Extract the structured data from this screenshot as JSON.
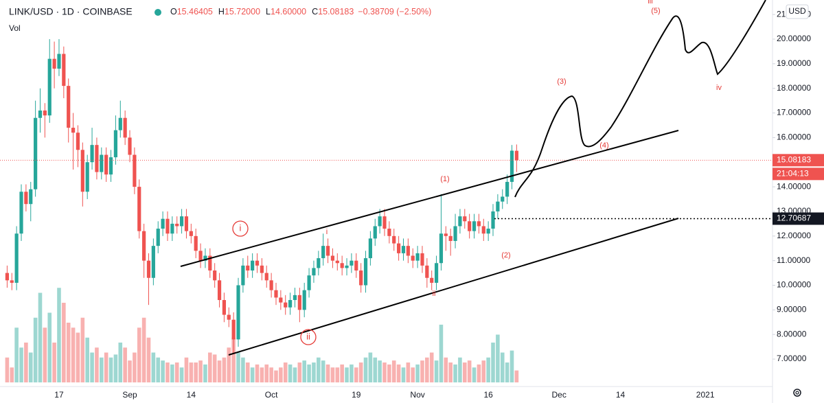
{
  "chart_data": {
    "type": "candlestick",
    "title": "LINK/USD · 1D · COINBASE",
    "legend": [
      {
        "key": "O",
        "value": "15.46405"
      },
      {
        "key": "H",
        "value": "15.72000"
      },
      {
        "key": "L",
        "value": "14.60000"
      },
      {
        "key": "C",
        "value": "15.08183"
      }
    ],
    "change": "−0.38709 (−2.50%)",
    "volume_label": "Vol",
    "currency": "USD",
    "countdown": "21:04:13",
    "up_color": "#26a69a",
    "down_color": "#ef5350",
    "grid": false,
    "ylim": [
      5.83,
      21.59
    ],
    "yticks": [
      {
        "value": 7,
        "label": "7.00000"
      },
      {
        "value": 8,
        "label": "8.00000"
      },
      {
        "value": 9,
        "label": "9.00000"
      },
      {
        "value": 10,
        "label": "10.00000"
      },
      {
        "value": 11,
        "label": "11.00000"
      },
      {
        "value": 12,
        "label": "12.00000"
      },
      {
        "value": 13,
        "label": "13.00000"
      },
      {
        "value": 14,
        "label": "14.00000"
      },
      {
        "value": 15,
        "label": "15.00000"
      },
      {
        "value": 16,
        "label": "16.00000"
      },
      {
        "value": 17,
        "label": "17.00000"
      },
      {
        "value": 18,
        "label": "18.00000"
      },
      {
        "value": 19,
        "label": "19.00000"
      },
      {
        "value": 20,
        "label": "20.00000"
      },
      {
        "value": 21,
        "label": "21.00000"
      }
    ],
    "hline": {
      "value": 12.70687
    },
    "categories": [
      null,
      null,
      null,
      null,
      null,
      null,
      null,
      null,
      null,
      null,
      null,
      "17",
      null,
      null,
      null,
      null,
      null,
      null,
      null,
      null,
      null,
      null,
      null,
      null,
      null,
      null,
      "Sep",
      null,
      null,
      null,
      null,
      null,
      null,
      null,
      null,
      null,
      null,
      null,
      null,
      "14",
      null,
      null,
      null,
      null,
      null,
      null,
      null,
      null,
      null,
      null,
      null,
      null,
      null,
      null,
      null,
      null,
      "Oct",
      null,
      null,
      null,
      null,
      null,
      null,
      null,
      null,
      null,
      null,
      null,
      null,
      null,
      null,
      null,
      null,
      null,
      "19",
      null,
      null,
      null,
      null,
      null,
      null,
      null,
      null,
      null,
      null,
      null,
      null,
      "Nov",
      null,
      null,
      null,
      null,
      null,
      null,
      null,
      null,
      null,
      null,
      null,
      null,
      null,
      null,
      "16",
      null,
      null,
      null,
      null,
      null,
      null,
      null,
      null,
      null,
      null,
      null,
      null,
      null,
      null,
      "Dec",
      null,
      null,
      null,
      null,
      null,
      null,
      null,
      null,
      null,
      null,
      null,
      null,
      "14",
      null,
      null,
      null,
      null,
      null,
      null,
      null,
      null,
      null,
      null,
      null,
      null,
      null,
      null,
      null,
      null,
      null,
      "2021"
    ],
    "open": [
      10.5,
      10.2,
      10.1,
      12.1,
      13.8,
      13.3,
      13.9,
      16.8,
      17.1,
      16.9,
      19.2,
      18.8,
      19.4,
      18.1,
      16.4,
      16.2,
      15.5,
      13.8,
      15.0,
      15.7,
      14.6,
      15.3,
      14.5,
      15.2,
      16.3,
      16.8,
      16.0,
      15.3,
      14.0,
      12.2,
      11.0,
      10.3,
      11.6,
      12.3,
      12.7,
      12.1,
      12.5,
      12.4,
      12.8,
      12.2,
      12.0,
      11.4,
      11.0,
      11.2,
      10.6,
      10.2,
      9.4,
      8.8,
      8.6,
      7.8,
      10.0,
      10.8,
      10.6,
      11.0,
      10.8,
      10.5,
      10.2,
      9.8,
      9.5,
      9.3,
      9.1,
      9.4,
      9.6,
      9.0,
      9.8,
      10.4,
      10.7,
      11.1,
      11.6,
      11.2,
      11.0,
      10.9,
      10.7,
      10.8,
      11.0,
      10.6,
      10.0,
      11.1,
      11.9,
      12.4,
      12.8,
      12.3,
      12.0,
      11.7,
      11.3,
      11.6,
      11.2,
      11.0,
      11.3,
      10.8,
      10.3,
      10.1,
      10.9,
      12.1,
      12.0,
      11.8,
      12.4,
      12.8,
      12.6,
      12.2,
      12.6,
      12.4,
      12.1,
      12.3,
      13.0,
      13.4,
      13.6,
      14.2,
      15.46405,
      null,
      null,
      null,
      null,
      null,
      null,
      null,
      null,
      null,
      null,
      null,
      null,
      null,
      null,
      null,
      null,
      null,
      null,
      null,
      null,
      null,
      null,
      null,
      null,
      null,
      null,
      null,
      null,
      null,
      null,
      null,
      null,
      null,
      null,
      null,
      null,
      null,
      null,
      null,
      null
    ],
    "high": [
      10.8,
      10.5,
      12.4,
      14.1,
      14.1,
      14.2,
      17.5,
      18.0,
      17.4,
      20.0,
      19.9,
      20.0,
      19.7,
      18.4,
      17.0,
      16.5,
      15.8,
      15.3,
      16.4,
      16.0,
      15.6,
      15.6,
      15.5,
      16.9,
      17.5,
      17.1,
      16.3,
      15.6,
      14.3,
      12.5,
      11.3,
      11.9,
      12.6,
      13.0,
      13.0,
      12.8,
      12.8,
      13.1,
      13.1,
      12.5,
      12.3,
      11.7,
      11.5,
      11.5,
      10.9,
      10.5,
      9.7,
      9.1,
      8.9,
      10.3,
      11.1,
      11.2,
      11.3,
      11.3,
      11.1,
      10.8,
      10.5,
      10.1,
      9.8,
      9.6,
      9.7,
      9.9,
      9.9,
      10.1,
      10.7,
      11.0,
      11.4,
      12.1,
      11.9,
      11.5,
      11.3,
      11.2,
      11.1,
      11.3,
      11.3,
      10.9,
      11.4,
      12.2,
      12.7,
      13.1,
      13.1,
      12.6,
      12.3,
      12.0,
      11.9,
      11.9,
      11.5,
      11.6,
      11.6,
      11.1,
      10.6,
      11.2,
      13.7,
      12.4,
      12.3,
      12.9,
      13.1,
      13.1,
      12.9,
      12.9,
      12.9,
      12.7,
      12.6,
      13.3,
      13.7,
      13.9,
      14.5,
      15.7,
      15.72,
      null,
      null,
      null,
      null,
      null,
      null,
      null,
      null,
      null,
      null,
      null,
      null,
      null,
      null,
      null,
      null,
      null,
      null,
      null,
      null,
      null,
      null,
      null,
      null,
      null,
      null,
      null,
      null,
      null,
      null,
      null,
      null,
      null,
      null,
      null,
      null,
      null,
      null,
      null,
      null
    ],
    "low": [
      9.9,
      9.8,
      9.8,
      11.8,
      13.0,
      12.6,
      13.6,
      16.2,
      16.0,
      16.6,
      18.0,
      18.5,
      17.6,
      15.8,
      14.7,
      14.8,
      13.2,
      13.5,
      14.7,
      14.3,
      14.3,
      14.2,
      14.2,
      14.9,
      16.0,
      15.7,
      15.0,
      13.7,
      11.9,
      10.3,
      9.2,
      10.0,
      11.3,
      12.0,
      11.8,
      11.8,
      12.1,
      12.1,
      11.9,
      11.7,
      11.1,
      10.7,
      10.7,
      10.3,
      9.9,
      9.1,
      8.5,
      8.3,
      7.2,
      7.5,
      9.7,
      10.3,
      10.3,
      10.5,
      10.2,
      9.9,
      9.5,
      9.2,
      9.0,
      8.8,
      8.8,
      9.1,
      8.5,
      8.7,
      9.5,
      10.1,
      10.4,
      10.8,
      10.9,
      10.7,
      10.6,
      10.4,
      10.4,
      10.5,
      10.3,
      9.7,
      9.7,
      10.8,
      11.6,
      12.1,
      12.0,
      11.7,
      11.4,
      11.0,
      11.0,
      10.9,
      10.7,
      10.7,
      10.5,
      9.9,
      9.8,
      9.8,
      10.6,
      11.4,
      11.2,
      11.5,
      12.1,
      12.3,
      11.9,
      11.9,
      12.1,
      11.8,
      11.8,
      12.0,
      12.7,
      13.1,
      13.3,
      13.9,
      14.6,
      null,
      null,
      null,
      null,
      null,
      null,
      null,
      null,
      null,
      null,
      null,
      null,
      null,
      null,
      null,
      null,
      null,
      null,
      null,
      null,
      null,
      null,
      null,
      null,
      null,
      null,
      null,
      null,
      null,
      null,
      null,
      null,
      null,
      null,
      null,
      null,
      null,
      null,
      null,
      null
    ],
    "close": [
      10.2,
      10.1,
      12.1,
      13.8,
      13.3,
      13.9,
      16.8,
      17.1,
      16.9,
      19.2,
      18.8,
      19.4,
      18.1,
      16.4,
      16.2,
      15.5,
      13.8,
      15.0,
      15.7,
      14.6,
      15.3,
      14.5,
      15.2,
      16.3,
      16.8,
      16.0,
      15.3,
      14.0,
      12.2,
      11.0,
      10.3,
      11.6,
      12.3,
      12.7,
      12.1,
      12.5,
      12.4,
      12.8,
      12.2,
      12.0,
      11.4,
      11.0,
      11.2,
      10.6,
      10.2,
      9.4,
      8.8,
      8.6,
      7.8,
      10.0,
      10.8,
      10.6,
      11.0,
      10.8,
      10.5,
      10.2,
      9.8,
      9.5,
      9.3,
      9.1,
      9.4,
      9.6,
      9.0,
      9.8,
      10.4,
      10.7,
      11.1,
      11.6,
      11.2,
      11.0,
      10.9,
      10.7,
      10.8,
      11.0,
      10.6,
      10.0,
      11.1,
      11.9,
      12.4,
      12.8,
      12.3,
      12.0,
      11.7,
      11.3,
      11.6,
      11.2,
      11.0,
      11.3,
      10.8,
      10.3,
      10.1,
      10.9,
      12.1,
      12.0,
      11.8,
      12.4,
      12.8,
      12.6,
      12.2,
      12.6,
      12.4,
      12.1,
      12.3,
      13.0,
      13.4,
      13.6,
      14.2,
      15.46892,
      15.08183,
      null,
      null,
      null,
      null,
      null,
      null,
      null,
      null,
      null,
      null,
      null,
      null,
      null,
      null,
      null,
      null,
      null,
      null,
      null,
      null,
      null,
      null,
      null,
      null,
      null,
      null,
      null,
      null,
      null,
      null,
      null,
      null,
      null,
      null,
      null,
      null,
      null,
      null,
      null,
      null
    ],
    "volume": [
      25,
      15,
      55,
      35,
      40,
      30,
      65,
      90,
      55,
      70,
      40,
      95,
      80,
      60,
      55,
      50,
      65,
      45,
      30,
      35,
      25,
      30,
      25,
      28,
      40,
      35,
      22,
      30,
      55,
      65,
      45,
      30,
      25,
      22,
      20,
      18,
      20,
      15,
      25,
      20,
      20,
      22,
      18,
      30,
      28,
      22,
      25,
      35,
      45,
      30,
      25,
      20,
      15,
      18,
      15,
      18,
      15,
      12,
      15,
      20,
      18,
      15,
      20,
      22,
      18,
      20,
      25,
      22,
      18,
      15,
      15,
      18,
      15,
      18,
      15,
      20,
      25,
      30,
      25,
      22,
      20,
      18,
      22,
      18,
      15,
      20,
      15,
      18,
      22,
      25,
      30,
      22,
      58,
      25,
      20,
      18,
      25,
      20,
      22,
      15,
      18,
      22,
      25,
      40,
      48,
      30,
      20,
      32,
      12,
      null,
      null,
      null,
      null,
      null,
      null,
      null,
      null,
      null,
      null,
      null,
      null,
      null,
      null,
      null,
      null,
      null,
      null,
      null,
      null,
      null,
      null,
      null,
      null,
      null,
      null,
      null,
      null,
      null,
      null,
      null,
      null,
      null,
      null,
      null,
      null,
      null,
      null,
      null,
      null
    ],
    "annotations": [
      "(1)",
      "(2)",
      "(3)",
      "(4)",
      "(5)",
      "iii",
      "i",
      "ii",
      "i",
      "ii",
      "iv"
    ]
  }
}
